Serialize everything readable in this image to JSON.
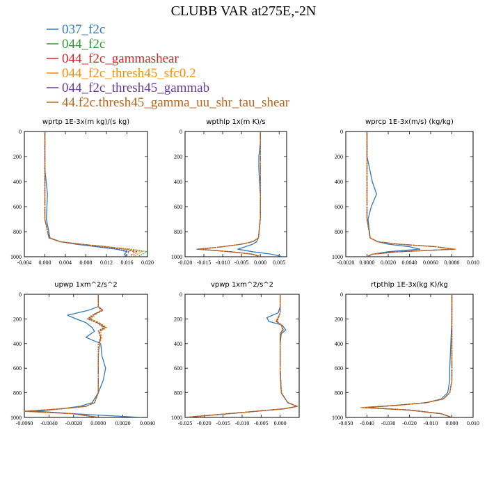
{
  "figure": {
    "title": "CLUBB VAR at275E,-2N"
  },
  "legend": [
    {
      "name": "037_f2c",
      "color": "#2f7bbd"
    },
    {
      "name": "044_f2c",
      "color": "#2ca02c"
    },
    {
      "name": "044_f2c_gammashear",
      "color": "#d62728"
    },
    {
      "name": "044_f2c_thresh45_sfc0.2",
      "color": "#ff8c00"
    },
    {
      "name": "044_f2c_thresh45_gammab",
      "color": "#6a3d9a"
    },
    {
      "name": "44.f2c.thresh45_gamma_uu_shr_tau_shear",
      "color": "#b5651d"
    }
  ],
  "chart_data": [
    {
      "type": "line",
      "title": "wprtp  1E-3x(m kg)/(s kg)",
      "xlim": [
        -0.004,
        0.02
      ],
      "ylim": [
        1000,
        0
      ],
      "xticks": [
        "-0.004",
        "0.000",
        "0.004",
        "0.008",
        "0.012",
        "0.016",
        "0.020"
      ],
      "yticks": [
        "0",
        "200",
        "400",
        "600",
        "800",
        "1000"
      ],
      "y": [
        0,
        100,
        300,
        500,
        700,
        850,
        880,
        900,
        920,
        940,
        960,
        980,
        1000
      ],
      "series": [
        {
          "x": [
            0.0,
            0.0,
            0.0,
            0.0005,
            0.0003,
            0.001,
            0.003,
            0.006,
            0.01,
            0.014,
            0.016,
            0.0155,
            0.016
          ]
        },
        {
          "x": [
            0.0,
            0.0,
            0.0,
            0.0,
            0.0,
            0.0008,
            0.003,
            0.007,
            0.012,
            0.017,
            0.02,
            0.019,
            0.018
          ]
        },
        {
          "x": [
            0.0,
            0.0,
            0.0,
            0.0,
            0.0,
            0.0008,
            0.003,
            0.007,
            0.012,
            0.016,
            0.018,
            0.0175,
            0.017
          ]
        },
        {
          "x": [
            0.0,
            0.0,
            0.0,
            0.0,
            0.0,
            0.0008,
            0.003,
            0.007,
            0.012,
            0.0165,
            0.019,
            0.018,
            0.0175
          ]
        },
        {
          "x": [
            0.0,
            0.0,
            0.0,
            0.0,
            0.0,
            0.0008,
            0.003,
            0.007,
            0.011,
            0.0145,
            0.0165,
            0.016,
            0.0155
          ]
        },
        {
          "x": [
            0.0,
            0.0,
            0.0,
            0.0,
            0.0,
            0.0008,
            0.003,
            0.007,
            0.012,
            0.0155,
            0.0175,
            0.017,
            0.0165
          ]
        }
      ]
    },
    {
      "type": "line",
      "title": "wpthlp  1x(m K)/s",
      "xlim": [
        -0.02,
        0.007
      ],
      "ylim": [
        1000,
        0
      ],
      "xticks": [
        "-0.020",
        "-0.015",
        "-0.010",
        "-0.005",
        "0.000",
        "0.005"
      ],
      "yticks": [
        "0",
        "200",
        "400",
        "600",
        "800",
        "1000"
      ],
      "y": [
        0,
        100,
        150,
        200,
        300,
        500,
        700,
        850,
        880,
        900,
        920,
        940,
        960,
        980,
        1000
      ],
      "series": [
        {
          "x": [
            0.0,
            0.0,
            -0.0002,
            -0.0004,
            -0.0004,
            0.0,
            0.0,
            -0.0005,
            -0.001,
            -0.002,
            -0.004,
            -0.006,
            -0.002,
            0.003,
            0.006
          ]
        },
        {
          "x": [
            0.0,
            0.0,
            0.0,
            0.0,
            0.0,
            0.0,
            0.0,
            -0.0005,
            -0.002,
            -0.005,
            -0.01,
            -0.017,
            -0.008,
            -0.002,
            0.0
          ]
        },
        {
          "x": [
            0.0,
            0.0,
            0.0,
            0.0,
            0.0,
            0.0,
            0.0,
            -0.0005,
            -0.002,
            -0.005,
            -0.01,
            -0.0165,
            -0.008,
            -0.002,
            0.0
          ]
        },
        {
          "x": [
            0.0,
            0.0,
            0.0,
            0.0,
            0.0,
            0.0,
            0.0,
            -0.0005,
            -0.002,
            -0.005,
            -0.01,
            -0.016,
            -0.008,
            -0.002,
            0.0
          ]
        },
        {
          "x": [
            0.0,
            0.0,
            0.0,
            0.0,
            0.0,
            0.0,
            0.0,
            -0.0005,
            -0.002,
            -0.005,
            -0.01,
            -0.0165,
            -0.008,
            -0.002,
            0.0
          ]
        },
        {
          "x": [
            0.0,
            0.0,
            0.0,
            0.0,
            0.0,
            0.0,
            0.0,
            -0.0005,
            -0.002,
            -0.005,
            -0.01,
            -0.016,
            -0.008,
            -0.002,
            0.0
          ]
        }
      ]
    },
    {
      "type": "line",
      "title": "wprcp  1E-3x(m/s) (kg/kg)",
      "xlim": [
        -0.002,
        0.01
      ],
      "ylim": [
        1000,
        0
      ],
      "xticks": [
        "-0.0020",
        "0.0000",
        "0.0020",
        "0.0040",
        "0.0060",
        "0.0080",
        "0.010"
      ],
      "yticks": [
        "0",
        "200",
        "400",
        "600",
        "800",
        "1000"
      ],
      "y": [
        0,
        200,
        400,
        500,
        600,
        700,
        850,
        880,
        900,
        920,
        940,
        960,
        980,
        1000
      ],
      "series": [
        {
          "x": [
            0.0,
            0.0,
            0.0005,
            0.0009,
            0.0004,
            0.0001,
            0.0003,
            0.001,
            0.002,
            0.004,
            0.005,
            0.002,
            0.0005,
            0.0
          ]
        },
        {
          "x": [
            0.0,
            0.0,
            0.0,
            0.0,
            0.0,
            0.0,
            0.0003,
            0.001,
            0.003,
            0.0065,
            0.0083,
            0.003,
            0.0005,
            0.0
          ]
        },
        {
          "x": [
            0.0,
            0.0,
            0.0,
            0.0,
            0.0,
            0.0,
            0.0003,
            0.001,
            0.003,
            0.0065,
            0.0082,
            0.003,
            0.0005,
            0.0
          ]
        },
        {
          "x": [
            0.0,
            0.0,
            0.0,
            0.0,
            0.0,
            0.0,
            0.0003,
            0.001,
            0.003,
            0.0065,
            0.0084,
            0.003,
            0.0005,
            0.0
          ]
        },
        {
          "x": [
            0.0,
            0.0,
            0.0,
            0.0,
            0.0,
            0.0,
            0.0003,
            0.001,
            0.003,
            0.0065,
            0.0081,
            0.003,
            0.0005,
            0.0
          ]
        },
        {
          "x": [
            0.0,
            0.0,
            0.0,
            0.0,
            0.0,
            0.0,
            0.0003,
            0.001,
            0.003,
            0.0065,
            0.0082,
            0.003,
            0.0005,
            0.0
          ]
        }
      ]
    },
    {
      "type": "line",
      "title": "upwp  1xm^2/s^2",
      "xlim": [
        -0.006,
        0.004
      ],
      "ylim": [
        1000,
        0
      ],
      "xticks": [
        "-0.0060",
        "-0.0040",
        "-0.0020",
        "0.0000",
        "0.0020",
        "0.0040"
      ],
      "yticks": [
        "0",
        "200",
        "400",
        "600",
        "800",
        "1000"
      ],
      "y": [
        0,
        100,
        130,
        170,
        200,
        230,
        270,
        300,
        350,
        400,
        500,
        600,
        700,
        800,
        880,
        910,
        930,
        950,
        970,
        1000
      ],
      "series": [
        {
          "x": [
            0.0,
            0.0,
            -0.0008,
            -0.0025,
            -0.0018,
            -0.001,
            -0.0005,
            -0.0003,
            -0.001,
            0.0002,
            0.0003,
            0.0006,
            0.0004,
            0.0,
            -0.0005,
            -0.0015,
            -0.003,
            -0.005,
            -0.002,
            0.0035
          ]
        },
        {
          "x": [
            0.0,
            0.0,
            0.0003,
            -0.0005,
            -0.0008,
            -0.0002,
            0.0006,
            0.0,
            0.0002,
            0.0001,
            0.0,
            0.0,
            0.0,
            0.0,
            -0.0003,
            -0.001,
            -0.003,
            -0.006,
            -0.002,
            0.0
          ]
        },
        {
          "x": [
            0.0,
            0.0,
            0.0004,
            -0.0004,
            -0.0007,
            0.0,
            0.0005,
            0.0001,
            0.0002,
            0.0001,
            0.0,
            0.0,
            0.0,
            0.0,
            -0.0003,
            -0.001,
            -0.003,
            -0.0058,
            -0.002,
            0.0
          ]
        },
        {
          "x": [
            0.0,
            0.0,
            0.0002,
            -0.0003,
            -0.0006,
            0.0001,
            0.0007,
            0.0002,
            0.0003,
            0.0001,
            0.0,
            0.0,
            0.0,
            0.0,
            -0.0003,
            -0.001,
            -0.003,
            -0.0062,
            -0.002,
            0.0
          ]
        },
        {
          "x": [
            0.0,
            0.0,
            0.0003,
            -0.0005,
            -0.0009,
            -0.0001,
            0.0004,
            0.0,
            0.0002,
            0.0,
            0.0,
            0.0,
            0.0,
            0.0,
            -0.0003,
            -0.001,
            -0.003,
            -0.0057,
            -0.002,
            0.0
          ]
        },
        {
          "x": [
            0.0,
            0.0,
            0.0004,
            -0.0004,
            -0.0008,
            0.0,
            0.0006,
            0.0001,
            0.0002,
            0.0001,
            0.0,
            0.0,
            0.0,
            0.0,
            -0.0003,
            -0.001,
            -0.003,
            -0.006,
            -0.002,
            0.0
          ]
        }
      ]
    },
    {
      "type": "line",
      "title": "vpwp  1xm^2/s^2",
      "xlim": [
        -0.025,
        0.005
      ],
      "ylim": [
        1000,
        0
      ],
      "xticks": [
        "-0.025",
        "-0.020",
        "-0.015",
        "-0.010",
        "-0.005",
        "0.000"
      ],
      "yticks": [
        "0",
        "200",
        "400",
        "600",
        "800",
        "1000"
      ],
      "y": [
        0,
        100,
        150,
        190,
        220,
        250,
        290,
        320,
        400,
        600,
        800,
        880,
        910,
        930,
        960,
        1000
      ],
      "series": [
        {
          "x": [
            0.0,
            0.0,
            -0.0005,
            -0.0035,
            -0.003,
            0.0005,
            0.0015,
            0.0003,
            0.0,
            0.0,
            0.0003,
            0.002,
            0.0045,
            0.001,
            -0.01,
            -0.025
          ]
        },
        {
          "x": [
            0.0,
            0.0,
            0.0,
            -0.0005,
            -0.001,
            0.0003,
            0.0008,
            0.0,
            0.0,
            0.0,
            0.0003,
            0.002,
            0.0045,
            0.001,
            -0.01,
            -0.025
          ]
        },
        {
          "x": [
            0.0,
            0.0,
            0.0,
            -0.0004,
            -0.0008,
            0.0004,
            0.0006,
            0.0,
            0.0,
            0.0,
            0.0003,
            0.002,
            0.0045,
            0.001,
            -0.01,
            -0.025
          ]
        },
        {
          "x": [
            0.0,
            0.0,
            0.0,
            -0.0006,
            -0.0012,
            0.0002,
            0.0009,
            0.0,
            0.0,
            0.0,
            0.0003,
            0.002,
            0.0045,
            0.001,
            -0.01,
            -0.025
          ]
        },
        {
          "x": [
            0.0,
            0.0,
            0.0,
            -0.0005,
            -0.0009,
            0.0003,
            0.0007,
            0.0,
            0.0,
            0.0,
            0.0003,
            0.002,
            0.0045,
            0.001,
            -0.01,
            -0.025
          ]
        },
        {
          "x": [
            0.0,
            0.0,
            0.0,
            -0.0005,
            -0.001,
            0.0003,
            0.0008,
            0.0,
            0.0,
            0.0,
            0.0003,
            0.002,
            0.0045,
            0.001,
            -0.01,
            -0.025
          ]
        }
      ]
    },
    {
      "type": "line",
      "title": "rtpthlp  1E-3x(kg K)/kg",
      "xlim": [
        -0.05,
        0.01
      ],
      "ylim": [
        1000,
        0
      ],
      "xticks": [
        "-0.050",
        "-0.040",
        "-0.030",
        "-0.020",
        "-0.010",
        "0.000",
        "0.010"
      ],
      "yticks": [
        "0",
        "200",
        "400",
        "600",
        "800",
        "1000"
      ],
      "y": [
        0,
        200,
        400,
        600,
        700,
        800,
        850,
        880,
        900,
        920,
        940,
        970,
        1000
      ],
      "series": [
        {
          "x": [
            0.0,
            0.0,
            -0.0005,
            -0.001,
            -0.001,
            -0.002,
            -0.005,
            -0.012,
            -0.025,
            -0.04,
            -0.02,
            -0.005,
            0.0
          ]
        },
        {
          "x": [
            0.0,
            0.0,
            0.0,
            0.0,
            0.0,
            -0.001,
            -0.004,
            -0.012,
            -0.025,
            -0.041,
            -0.02,
            -0.005,
            0.0
          ]
        },
        {
          "x": [
            0.0,
            0.0,
            0.0,
            0.0,
            0.0,
            -0.001,
            -0.004,
            -0.012,
            -0.025,
            -0.042,
            -0.02,
            -0.005,
            0.0
          ]
        },
        {
          "x": [
            0.0,
            0.0,
            0.0,
            0.0,
            0.0,
            -0.001,
            -0.004,
            -0.012,
            -0.025,
            -0.043,
            -0.021,
            -0.005,
            0.0
          ]
        },
        {
          "x": [
            0.0,
            0.0,
            0.0,
            0.0,
            0.0,
            -0.001,
            -0.004,
            -0.012,
            -0.025,
            -0.041,
            -0.02,
            -0.005,
            0.0
          ]
        },
        {
          "x": [
            0.0,
            0.0,
            0.0,
            0.0,
            0.0,
            -0.001,
            -0.004,
            -0.012,
            -0.025,
            -0.042,
            -0.02,
            -0.005,
            0.0
          ]
        }
      ]
    }
  ]
}
